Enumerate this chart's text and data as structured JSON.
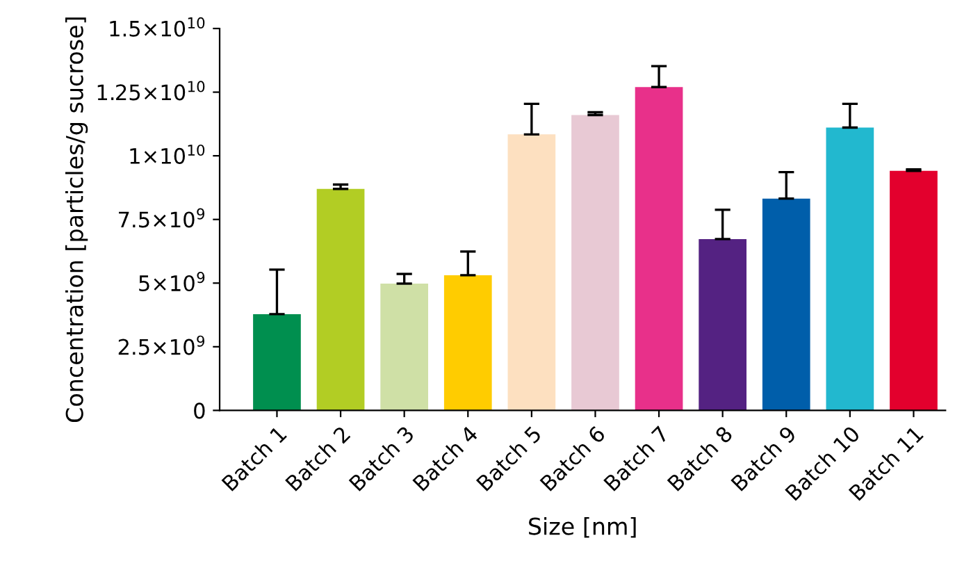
{
  "chart_data": {
    "type": "bar",
    "xlabel": "Size [nm]",
    "ylabel": "Concentration [particles/g sucrose]",
    "categories": [
      "Batch 1",
      "Batch 2",
      "Batch 3",
      "Batch 4",
      "Batch 5",
      "Batch 6",
      "Batch 7",
      "Batch 8",
      "Batch 9",
      "Batch 10",
      "Batch 11"
    ],
    "values": [
      3780000000.0,
      8700000000.0,
      4980000000.0,
      5310000000.0,
      10840000000.0,
      11600000000.0,
      12700000000.0,
      6730000000.0,
      8320000000.0,
      11110000000.0,
      9410000000.0
    ],
    "errors": [
      [
        3780000000.0,
        5530000000.0
      ],
      [
        8700000000.0,
        8870000000.0
      ],
      [
        4980000000.0,
        5360000000.0
      ],
      [
        5310000000.0,
        6240000000.0
      ],
      [
        10840000000.0,
        12040000000.0
      ],
      [
        11600000000.0,
        11710000000.0
      ],
      [
        12700000000.0,
        13520000000.0
      ],
      [
        6730000000.0,
        7880000000.0
      ],
      [
        8320000000.0,
        9360000000.0
      ],
      [
        11110000000.0,
        12040000000.0
      ],
      [
        9410000000.0,
        9470000000.0
      ]
    ],
    "colors": [
      "#008f4f",
      "#b2cd24",
      "#cfe0a6",
      "#ffcc00",
      "#fde0c0",
      "#e8c9d4",
      "#e8308a",
      "#542282",
      "#005eaa",
      "#22b8cf",
      "#e3002d"
    ],
    "ylim": [
      0,
      15000000000.0
    ],
    "yticks": [
      0,
      {
        "value": 2500000000.0,
        "label": "2.5×10$^{9}$"
      },
      {
        "value": 5000000000.0,
        "label": "5×10$^{9}$"
      },
      {
        "value": 7500000000.0,
        "label": "7.5×10$^{9}$"
      },
      {
        "value": 10000000000.0,
        "label": "1×10$^{10}$"
      },
      {
        "value": 12500000000.0,
        "label": "1.25×10$^{10}$"
      },
      {
        "value": 15000000000.0,
        "label": "1.5×10$^{10}$"
      }
    ],
    "grid": false
  }
}
